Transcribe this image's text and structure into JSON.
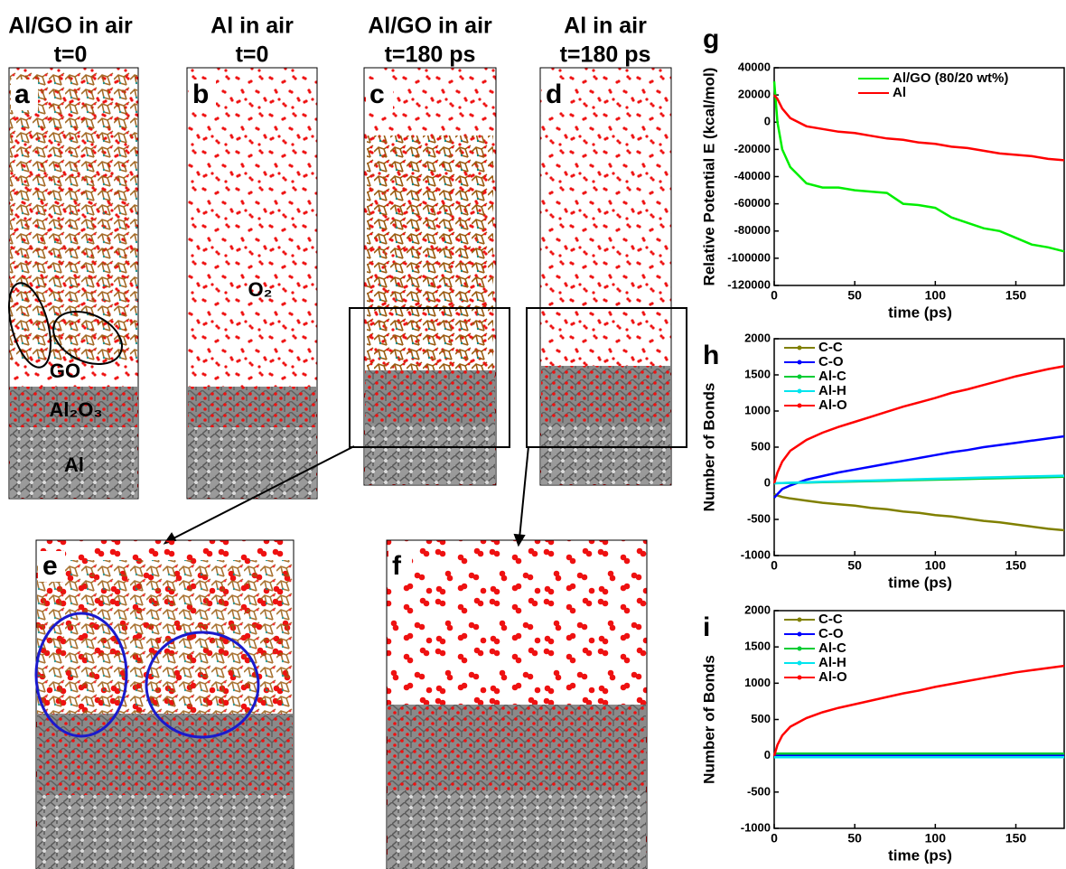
{
  "panels": [
    {
      "label": "a",
      "title": [
        "Al/GO in air",
        "t=0"
      ]
    },
    {
      "label": "b",
      "title": [
        "Al in air",
        "t=0"
      ]
    },
    {
      "label": "c",
      "title": [
        "Al/GO in air",
        "t=180 ps"
      ]
    },
    {
      "label": "d",
      "title": [
        "Al in air",
        "t=180 ps"
      ]
    },
    {
      "label": "e"
    },
    {
      "label": "f"
    }
  ],
  "annotations": {
    "go": "GO",
    "al2o3": "Al₂O₃",
    "al": "Al",
    "o2": "O₂"
  },
  "chart_data": [
    {
      "type": "line",
      "panel_label": "g",
      "xlabel": "time (ps)",
      "ylabel": "Relative Potential E (kcal/mol)",
      "x": [
        0,
        2,
        5,
        10,
        20,
        30,
        40,
        50,
        60,
        70,
        80,
        90,
        100,
        110,
        120,
        130,
        140,
        150,
        160,
        170,
        180
      ],
      "xlim": [
        0,
        180
      ],
      "xticks": [
        0,
        50,
        100,
        150
      ],
      "ylim": [
        -120000,
        40000
      ],
      "yticks": [
        -120000,
        -100000,
        -80000,
        -60000,
        -40000,
        -20000,
        0,
        20000,
        40000
      ],
      "legend": "upper right",
      "series": [
        {
          "name": "Al/GO (80/20 wt%)",
          "color": "#00ee00",
          "values": [
            30000,
            0,
            -20000,
            -33000,
            -45000,
            -48000,
            -48000,
            -50000,
            -51000,
            -52000,
            -60000,
            -61000,
            -63000,
            -70000,
            -74000,
            -78000,
            -80000,
            -85000,
            -90000,
            -92000,
            -95000
          ]
        },
        {
          "name": "Al",
          "color": "#ff0000",
          "values": [
            20000,
            17000,
            10000,
            3000,
            -3000,
            -5000,
            -7000,
            -8000,
            -10000,
            -12000,
            -13000,
            -15000,
            -16000,
            -18000,
            -19000,
            -21000,
            -23000,
            -24000,
            -25000,
            -27000,
            -28000
          ]
        }
      ]
    },
    {
      "type": "line",
      "panel_label": "h",
      "xlabel": "time (ps)",
      "ylabel": "Number of Bonds",
      "x": [
        0,
        2,
        5,
        10,
        20,
        30,
        40,
        50,
        60,
        70,
        80,
        90,
        100,
        110,
        120,
        130,
        140,
        150,
        160,
        170,
        180
      ],
      "xlim": [
        0,
        180
      ],
      "xticks": [
        0,
        50,
        100,
        150
      ],
      "ylim": [
        -1000,
        2000
      ],
      "yticks": [
        -1000,
        -500,
        0,
        500,
        1000,
        1500,
        2000
      ],
      "legend": "upper left",
      "series": [
        {
          "name": "C-C",
          "color": "#808000",
          "values": [
            -150,
            -170,
            -190,
            -210,
            -240,
            -270,
            -290,
            -310,
            -340,
            -360,
            -390,
            -410,
            -440,
            -460,
            -490,
            -520,
            -540,
            -570,
            -600,
            -630,
            -650
          ]
        },
        {
          "name": "C-O",
          "color": "#0000ff",
          "values": [
            -200,
            -150,
            -80,
            -30,
            50,
            100,
            150,
            190,
            230,
            270,
            310,
            350,
            390,
            430,
            460,
            500,
            530,
            560,
            590,
            620,
            650
          ]
        },
        {
          "name": "Al-C",
          "color": "#00cc33",
          "values": [
            0,
            1,
            3,
            5,
            10,
            15,
            20,
            25,
            30,
            35,
            40,
            45,
            50,
            55,
            60,
            65,
            70,
            75,
            80,
            85,
            90
          ]
        },
        {
          "name": "Al-H",
          "color": "#00e5ee",
          "values": [
            0,
            2,
            4,
            8,
            14,
            20,
            26,
            32,
            38,
            44,
            50,
            56,
            62,
            68,
            74,
            80,
            85,
            90,
            95,
            100,
            105
          ]
        },
        {
          "name": "Al-O",
          "color": "#ff0000",
          "values": [
            0,
            150,
            300,
            450,
            600,
            700,
            780,
            850,
            920,
            990,
            1060,
            1120,
            1180,
            1250,
            1300,
            1360,
            1420,
            1480,
            1530,
            1580,
            1620
          ]
        }
      ]
    },
    {
      "type": "line",
      "panel_label": "i",
      "xlabel": "time (ps)",
      "ylabel": "Number of Bonds",
      "x": [
        0,
        2,
        5,
        10,
        20,
        30,
        40,
        50,
        60,
        70,
        80,
        90,
        100,
        110,
        120,
        130,
        140,
        150,
        160,
        170,
        180
      ],
      "xlim": [
        0,
        180
      ],
      "xticks": [
        0,
        50,
        100,
        150
      ],
      "ylim": [
        -1000,
        2000
      ],
      "yticks": [
        -1000,
        -500,
        0,
        500,
        1000,
        1500,
        2000
      ],
      "legend": "upper left",
      "series": [
        {
          "name": "C-C",
          "color": "#808000",
          "values": [
            0,
            0,
            0,
            0,
            0,
            0,
            0,
            0,
            0,
            0,
            0,
            0,
            0,
            0,
            0,
            0,
            0,
            0,
            0,
            0,
            0
          ]
        },
        {
          "name": "C-O",
          "color": "#0000ff",
          "values": [
            0,
            0,
            0,
            0,
            0,
            0,
            0,
            0,
            0,
            0,
            0,
            0,
            0,
            0,
            0,
            0,
            0,
            0,
            0,
            0,
            0
          ]
        },
        {
          "name": "Al-C",
          "color": "#00cc33",
          "values": [
            30,
            30,
            30,
            30,
            30,
            30,
            30,
            30,
            30,
            30,
            30,
            30,
            30,
            30,
            30,
            30,
            30,
            30,
            30,
            30,
            30
          ]
        },
        {
          "name": "Al-H",
          "color": "#00e5ee",
          "values": [
            -20,
            -20,
            -20,
            -20,
            -20,
            -20,
            -20,
            -20,
            -20,
            -20,
            -20,
            -20,
            -20,
            -20,
            -20,
            -20,
            -20,
            -20,
            -20,
            -20,
            -20
          ]
        },
        {
          "name": "Al-O",
          "color": "#ff0000",
          "values": [
            0,
            150,
            280,
            400,
            520,
            600,
            660,
            710,
            760,
            810,
            860,
            900,
            950,
            990,
            1030,
            1070,
            1110,
            1150,
            1180,
            1210,
            1240
          ]
        }
      ]
    }
  ]
}
